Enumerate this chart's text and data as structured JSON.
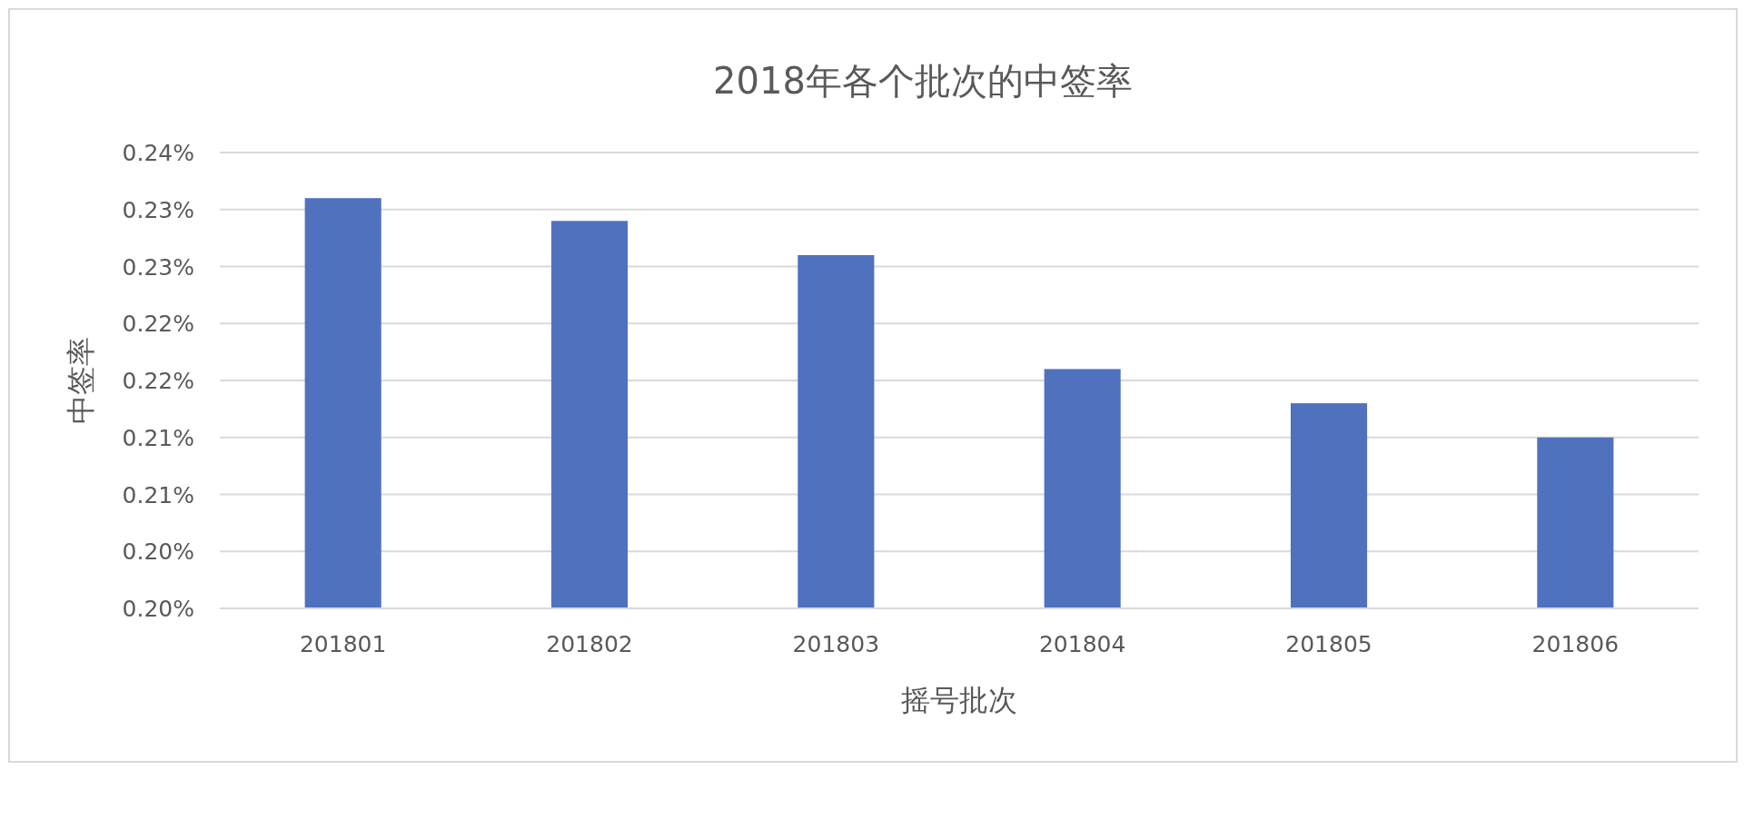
{
  "chart_data": {
    "type": "bar",
    "title": "2018年各个批次的中签率",
    "xlabel": "摇号批次",
    "ylabel": "中签率",
    "categories": [
      "201801",
      "201802",
      "201803",
      "201804",
      "201805",
      "201806"
    ],
    "values": [
      0.236,
      0.234,
      0.231,
      0.221,
      0.218,
      0.215
    ],
    "color": "#4f71be",
    "grid": "y",
    "ylim": [
      0.2,
      0.24
    ],
    "yticks": [
      {
        "value": 0.2,
        "label": "0.20%"
      },
      {
        "value": 0.205,
        "label": "0.20%"
      },
      {
        "value": 0.21,
        "label": "0.21%"
      },
      {
        "value": 0.215,
        "label": "0.21%"
      },
      {
        "value": 0.22,
        "label": "0.22%"
      },
      {
        "value": 0.225,
        "label": "0.22%"
      },
      {
        "value": 0.23,
        "label": "0.23%"
      },
      {
        "value": 0.235,
        "label": "0.23%"
      },
      {
        "value": 0.24,
        "label": "0.24%"
      }
    ]
  }
}
